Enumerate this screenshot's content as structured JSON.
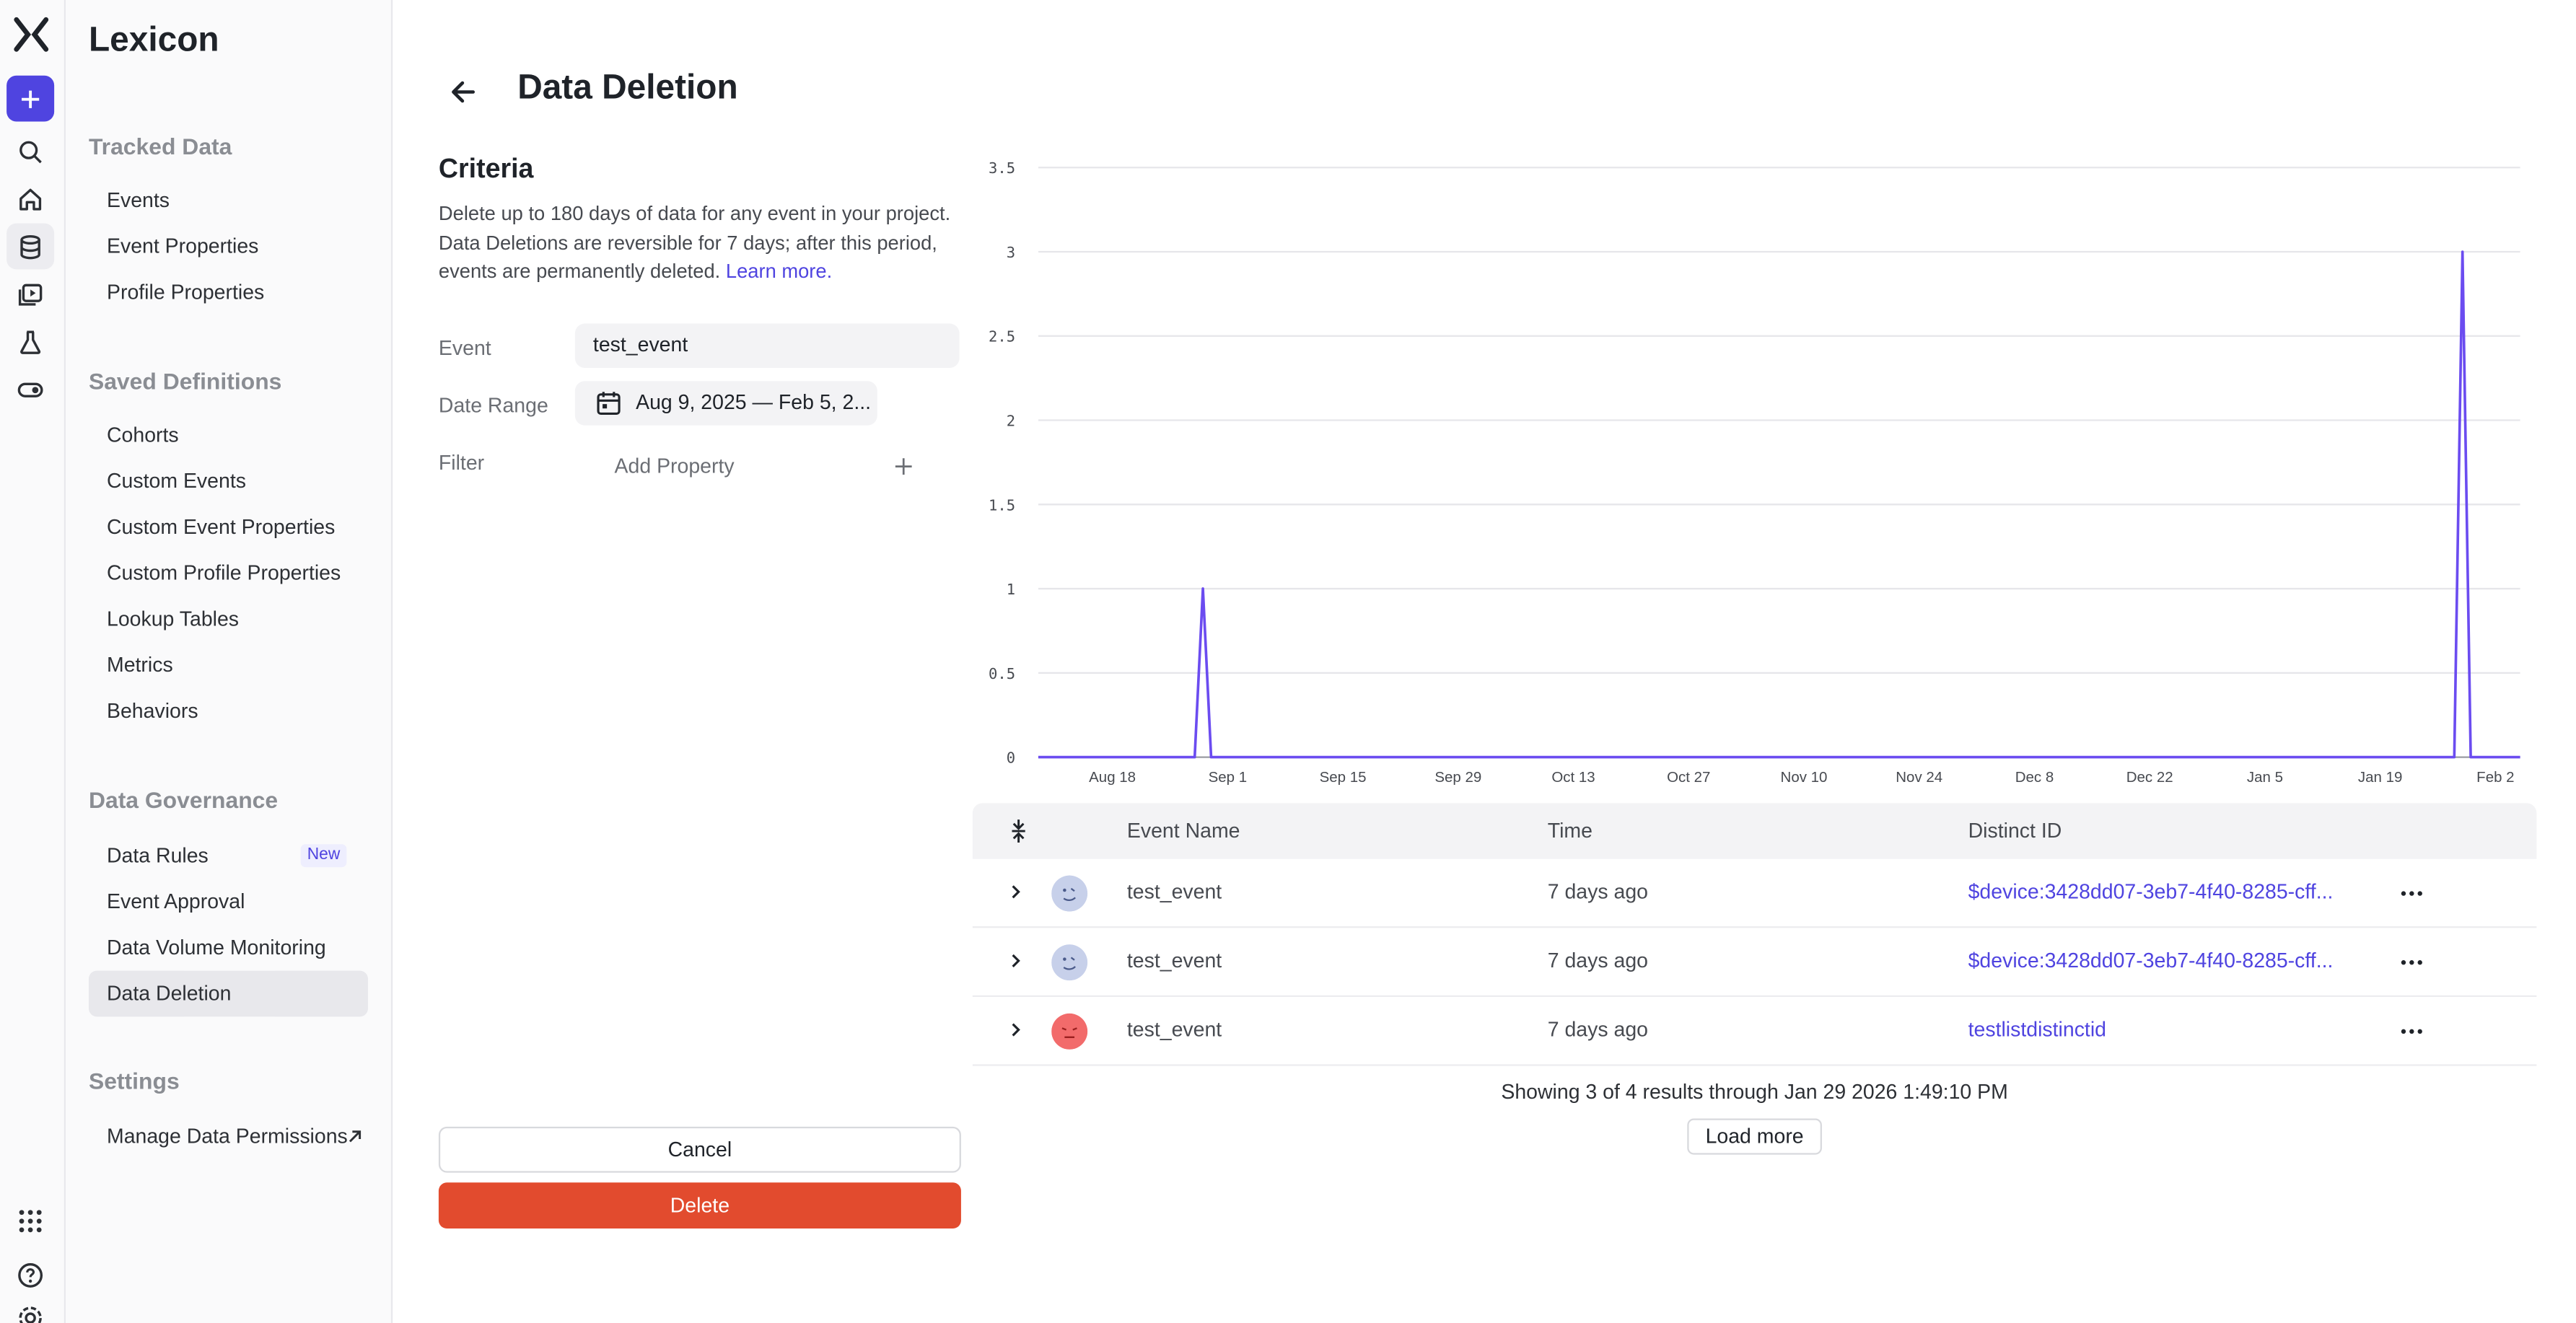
{
  "sidebar": {
    "app_title": "Lexicon",
    "sections": [
      {
        "title": "Tracked Data",
        "items": [
          "Events",
          "Event Properties",
          "Profile Properties"
        ]
      },
      {
        "title": "Saved Definitions",
        "items": [
          "Cohorts",
          "Custom Events",
          "Custom Event Properties",
          "Custom Profile Properties",
          "Lookup Tables",
          "Metrics",
          "Behaviors"
        ]
      },
      {
        "title": "Data Governance",
        "items": [
          "Data Rules",
          "Event Approval",
          "Data Volume Monitoring",
          "Data Deletion"
        ]
      },
      {
        "title": "Settings",
        "items": [
          "Manage Data Permissions"
        ]
      }
    ],
    "new_badge": "New",
    "selected_item": "Data Deletion"
  },
  "rail_icons": [
    "logo-icon",
    "add-icon",
    "search-icon",
    "home-icon",
    "database-icon",
    "replay-icon",
    "flask-icon",
    "toggle-icon",
    "apps-grid-icon",
    "help-icon",
    "settings-icon"
  ],
  "header": {
    "title": "Data Deletion"
  },
  "criteria": {
    "title": "Criteria",
    "description": "Delete up to 180 days of data for any event in your project. Data Deletions are reversible for 7 days; after this period, events are permanently deleted.",
    "learn_more": "Learn more.",
    "event_label": "Event",
    "event_value": "test_event",
    "date_label": "Date Range",
    "date_value": "Aug 9, 2025 — Feb 5, 2...",
    "filter_label": "Filter",
    "add_property": "Add Property",
    "cancel": "Cancel",
    "delete": "Delete"
  },
  "colors": {
    "accent": "#4f44e0",
    "line": "#6b4cf0",
    "delete": "#e24b2e"
  },
  "chart_data": {
    "type": "line",
    "x_start": "Aug 9, 2025",
    "x_end": "Feb 5, 2026",
    "x_ticks": [
      "Aug 18",
      "Sep 1",
      "Sep 15",
      "Sep 29",
      "Oct 13",
      "Oct 27",
      "Nov 10",
      "Nov 24",
      "Dec 8",
      "Dec 22",
      "Jan 5",
      "Jan 19",
      "Feb 2"
    ],
    "y_ticks": [
      "0",
      "0.5",
      "1",
      "1.5",
      "2",
      "2.5",
      "3",
      "3.5"
    ],
    "ylim": [
      0,
      3.5
    ],
    "grid": true,
    "series": [
      {
        "points": [
          {
            "x": "Aug 9",
            "y": 0
          },
          {
            "x": "Aug 28",
            "y": 0
          },
          {
            "x": "Aug 29",
            "y": 1
          },
          {
            "x": "Aug 30",
            "y": 0
          },
          {
            "x": "Jan 28",
            "y": 0
          },
          {
            "x": "Jan 29",
            "y": 3
          },
          {
            "x": "Jan 30",
            "y": 0
          },
          {
            "x": "Feb 5",
            "y": 0
          }
        ]
      }
    ]
  },
  "table": {
    "columns": [
      "Event Name",
      "Time",
      "Distinct ID"
    ],
    "rows": [
      {
        "event": "test_event",
        "time": "7 days ago",
        "distinct_id": "$device:3428dd07-3eb7-4f40-8285-cff...",
        "avatar": "blue"
      },
      {
        "event": "test_event",
        "time": "7 days ago",
        "distinct_id": "$device:3428dd07-3eb7-4f40-8285-cff...",
        "avatar": "blue"
      },
      {
        "event": "test_event",
        "time": "7 days ago",
        "distinct_id": "testlistdistinctid",
        "avatar": "red"
      }
    ],
    "results_text": "Showing 3 of 4 results through Jan 29 2026 1:49:10 PM",
    "load_more": "Load more"
  }
}
